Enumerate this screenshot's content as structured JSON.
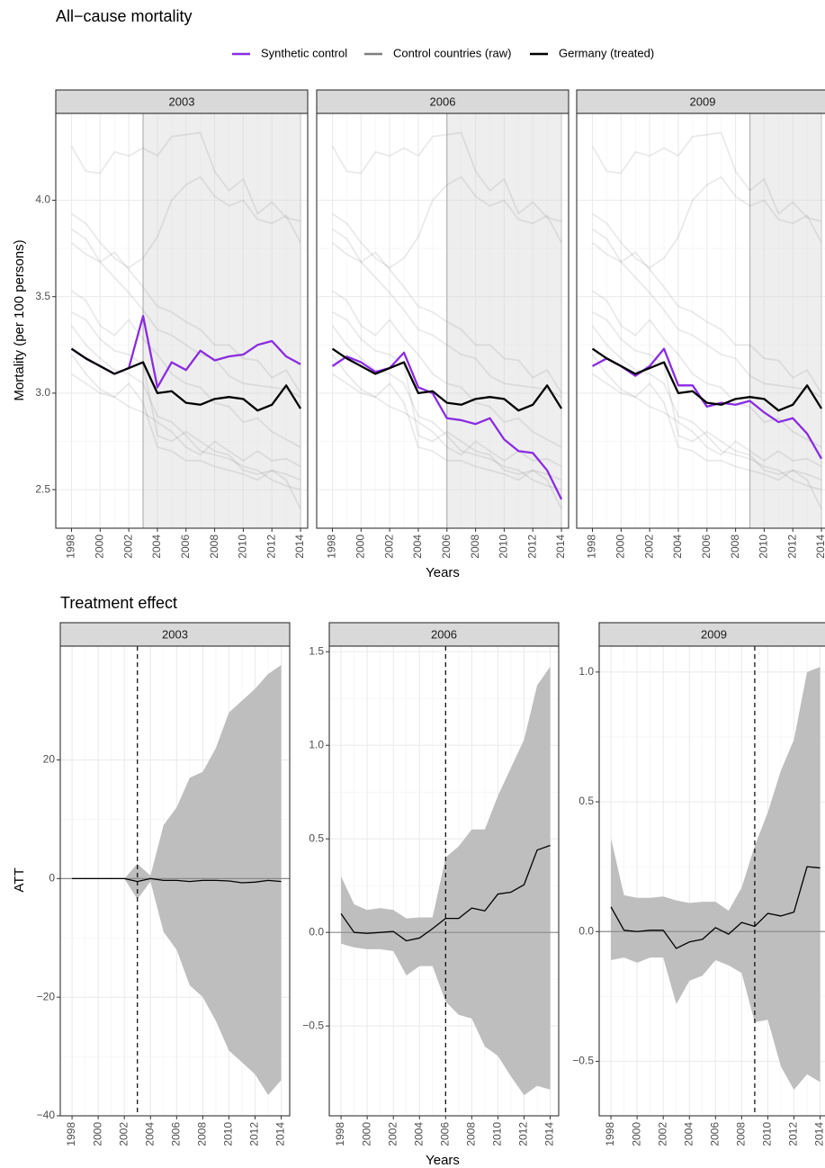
{
  "figure": {
    "title": "All−cause mortality",
    "ylabel": "Mortality (per 100 persons)",
    "xlabel": "Years",
    "legend": [
      {
        "name": "Synthetic control",
        "color": "#8a2be2"
      },
      {
        "name": "Control countries (raw)",
        "color": "#7f7f7f"
      },
      {
        "name": "Germany (treated)",
        "color": "#000000"
      }
    ]
  },
  "effects": {
    "title": "Treatment effect",
    "ylabel": "ATT",
    "xlabel": "Years",
    "band_color": "#bebebe",
    "line_color": "#000000"
  },
  "chart_data": [
    {
      "type": "line",
      "title": "2003",
      "x": [
        1998,
        1999,
        2000,
        2001,
        2002,
        2003,
        2004,
        2005,
        2006,
        2007,
        2008,
        2009,
        2010,
        2011,
        2012,
        2013,
        2014
      ],
      "synthetic": [
        3.23,
        3.18,
        3.14,
        3.1,
        3.13,
        3.4,
        3.03,
        3.16,
        3.12,
        3.22,
        3.17,
        3.19,
        3.2,
        3.25,
        3.27,
        3.19,
        3.15
      ],
      "treated": [
        3.23,
        3.18,
        3.14,
        3.1,
        3.13,
        3.16,
        3.0,
        3.01,
        2.95,
        2.94,
        2.97,
        2.98,
        2.97,
        2.91,
        2.94,
        3.04,
        2.92
      ],
      "control_raw": [
        [
          4.28,
          4.15,
          4.14,
          4.25,
          4.23,
          4.27,
          4.23,
          4.33,
          4.34,
          4.35,
          4.15,
          4.05,
          4.11,
          3.93,
          3.99,
          3.91,
          3.89
        ],
        [
          3.93,
          3.88,
          3.78,
          3.7,
          3.65,
          3.7,
          3.81,
          4.0,
          4.08,
          4.12,
          4.02,
          3.97,
          4.0,
          3.9,
          3.88,
          3.92,
          3.78
        ],
        [
          3.85,
          3.8,
          3.68,
          3.73,
          3.64,
          3.55,
          3.45,
          3.42,
          3.37,
          3.33,
          3.25,
          3.25,
          3.18,
          3.17,
          3.08,
          3.12,
          3.0
        ],
        [
          3.78,
          3.72,
          3.68,
          3.6,
          3.52,
          3.43,
          3.33,
          3.3,
          3.25,
          3.2,
          3.18,
          3.09,
          3.05,
          3.04,
          3.03,
          3.02,
          2.98
        ],
        [
          3.53,
          3.48,
          3.35,
          3.3,
          3.38,
          3.28,
          3.2,
          3.1,
          3.05,
          3.03,
          2.95,
          2.93,
          2.85,
          2.87,
          2.8,
          2.76,
          2.72
        ],
        [
          3.42,
          3.38,
          3.28,
          3.22,
          3.2,
          3.15,
          2.78,
          2.75,
          2.8,
          2.75,
          2.7,
          2.68,
          2.6,
          2.58,
          2.6,
          2.55,
          2.4
        ],
        [
          3.35,
          3.25,
          3.18,
          3.12,
          3.1,
          3.05,
          2.88,
          2.85,
          2.78,
          2.7,
          2.68,
          2.66,
          2.62,
          2.6,
          2.55,
          2.52,
          2.5
        ],
        [
          3.2,
          3.1,
          3.02,
          2.98,
          3.05,
          2.95,
          2.72,
          2.7,
          2.65,
          2.65,
          2.62,
          2.6,
          2.58,
          2.55,
          2.6,
          2.58,
          2.55
        ],
        [
          3.1,
          3.05,
          3.0,
          2.98,
          2.93,
          2.9,
          2.85,
          2.8,
          2.72,
          2.68,
          2.75,
          2.7,
          2.65,
          2.7,
          2.65,
          2.66,
          2.62
        ]
      ],
      "shade_from": 2003,
      "xlim": [
        1996.9,
        2014.5
      ],
      "xticks": [
        1998,
        2000,
        2002,
        2004,
        2006,
        2008,
        2010,
        2012,
        2014
      ],
      "ylim": [
        2.3,
        4.45
      ],
      "yticks": [
        2.5,
        {
          "value": 3,
          "label": "3.0"
        },
        3.5,
        {
          "value": 4,
          "label": "4.0"
        }
      ]
    },
    {
      "type": "line",
      "title": "2006",
      "x": [
        1998,
        1999,
        2000,
        2001,
        2002,
        2003,
        2004,
        2005,
        2006,
        2007,
        2008,
        2009,
        2010,
        2011,
        2012,
        2013,
        2014
      ],
      "synthetic": [
        3.14,
        3.19,
        3.16,
        3.11,
        3.13,
        3.21,
        3.03,
        3.0,
        2.87,
        2.86,
        2.84,
        2.87,
        2.76,
        2.7,
        2.69,
        2.6,
        2.45
      ],
      "treated": [
        3.23,
        3.18,
        3.14,
        3.1,
        3.13,
        3.16,
        3.0,
        3.01,
        2.95,
        2.94,
        2.97,
        2.98,
        2.97,
        2.91,
        2.94,
        3.04,
        2.92
      ],
      "control_raw": [
        [
          4.28,
          4.15,
          4.14,
          4.25,
          4.23,
          4.27,
          4.23,
          4.33,
          4.34,
          4.35,
          4.15,
          4.05,
          4.11,
          3.93,
          3.99,
          3.91,
          3.89
        ],
        [
          3.93,
          3.88,
          3.78,
          3.7,
          3.65,
          3.7,
          3.81,
          4.0,
          4.08,
          4.12,
          4.02,
          3.97,
          4.0,
          3.9,
          3.88,
          3.92,
          3.78
        ],
        [
          3.85,
          3.8,
          3.68,
          3.73,
          3.64,
          3.55,
          3.45,
          3.42,
          3.37,
          3.33,
          3.25,
          3.25,
          3.18,
          3.17,
          3.08,
          3.12,
          3.0
        ],
        [
          3.78,
          3.72,
          3.68,
          3.6,
          3.52,
          3.43,
          3.33,
          3.3,
          3.25,
          3.2,
          3.18,
          3.09,
          3.05,
          3.04,
          3.03,
          3.02,
          2.98
        ],
        [
          3.53,
          3.48,
          3.35,
          3.3,
          3.38,
          3.28,
          3.2,
          3.1,
          3.05,
          3.03,
          2.95,
          2.93,
          2.85,
          2.87,
          2.8,
          2.76,
          2.72
        ],
        [
          3.42,
          3.38,
          3.28,
          3.22,
          3.2,
          3.15,
          2.78,
          2.75,
          2.8,
          2.75,
          2.7,
          2.68,
          2.6,
          2.58,
          2.6,
          2.55,
          2.4
        ],
        [
          3.35,
          3.25,
          3.18,
          3.12,
          3.1,
          3.05,
          2.88,
          2.85,
          2.78,
          2.7,
          2.68,
          2.66,
          2.62,
          2.6,
          2.55,
          2.52,
          2.5
        ],
        [
          3.2,
          3.1,
          3.02,
          2.98,
          3.05,
          2.95,
          2.72,
          2.7,
          2.65,
          2.65,
          2.62,
          2.6,
          2.58,
          2.55,
          2.6,
          2.58,
          2.55
        ],
        [
          3.1,
          3.05,
          3.0,
          2.98,
          2.93,
          2.9,
          2.85,
          2.8,
          2.72,
          2.68,
          2.75,
          2.7,
          2.65,
          2.7,
          2.65,
          2.66,
          2.62
        ]
      ],
      "shade_from": 2006,
      "xlim": [
        1996.9,
        2014.5
      ],
      "xticks": [
        1998,
        2000,
        2002,
        2004,
        2006,
        2008,
        2010,
        2012,
        2014
      ],
      "ylim": [
        2.3,
        4.45
      ],
      "yticks": [
        2.5,
        {
          "value": 3,
          "label": "3.0"
        },
        3.5,
        {
          "value": 4,
          "label": "4.0"
        }
      ]
    },
    {
      "type": "line",
      "title": "2009",
      "x": [
        1998,
        1999,
        2000,
        2001,
        2002,
        2003,
        2004,
        2005,
        2006,
        2007,
        2008,
        2009,
        2010,
        2011,
        2012,
        2013,
        2014
      ],
      "synthetic": [
        3.14,
        3.18,
        3.14,
        3.09,
        3.14,
        3.23,
        3.04,
        3.04,
        2.93,
        2.95,
        2.94,
        2.96,
        2.9,
        2.85,
        2.87,
        2.79,
        2.66
      ],
      "treated": [
        3.23,
        3.18,
        3.14,
        3.1,
        3.13,
        3.16,
        3.0,
        3.01,
        2.95,
        2.94,
        2.97,
        2.98,
        2.97,
        2.91,
        2.94,
        3.04,
        2.92
      ],
      "control_raw": [
        [
          4.28,
          4.15,
          4.14,
          4.25,
          4.23,
          4.27,
          4.23,
          4.33,
          4.34,
          4.35,
          4.15,
          4.05,
          4.11,
          3.93,
          3.99,
          3.91,
          3.89
        ],
        [
          3.93,
          3.88,
          3.78,
          3.7,
          3.65,
          3.7,
          3.81,
          4.0,
          4.08,
          4.12,
          4.02,
          3.97,
          4.0,
          3.9,
          3.88,
          3.92,
          3.78
        ],
        [
          3.85,
          3.8,
          3.68,
          3.73,
          3.64,
          3.55,
          3.45,
          3.42,
          3.37,
          3.33,
          3.25,
          3.25,
          3.18,
          3.17,
          3.08,
          3.12,
          3.0
        ],
        [
          3.78,
          3.72,
          3.68,
          3.6,
          3.52,
          3.43,
          3.33,
          3.3,
          3.25,
          3.2,
          3.18,
          3.09,
          3.05,
          3.04,
          3.03,
          3.02,
          2.98
        ],
        [
          3.53,
          3.48,
          3.35,
          3.3,
          3.38,
          3.28,
          3.2,
          3.1,
          3.05,
          3.03,
          2.95,
          2.93,
          2.85,
          2.87,
          2.8,
          2.76,
          2.72
        ],
        [
          3.42,
          3.38,
          3.28,
          3.22,
          3.2,
          3.15,
          2.78,
          2.75,
          2.8,
          2.75,
          2.7,
          2.68,
          2.6,
          2.58,
          2.6,
          2.55,
          2.4
        ],
        [
          3.35,
          3.25,
          3.18,
          3.12,
          3.1,
          3.05,
          2.88,
          2.85,
          2.78,
          2.7,
          2.68,
          2.66,
          2.62,
          2.6,
          2.55,
          2.52,
          2.5
        ],
        [
          3.2,
          3.1,
          3.02,
          2.98,
          3.05,
          2.95,
          2.72,
          2.7,
          2.65,
          2.65,
          2.62,
          2.6,
          2.58,
          2.55,
          2.6,
          2.58,
          2.55
        ],
        [
          3.1,
          3.05,
          3.0,
          2.98,
          2.93,
          2.9,
          2.85,
          2.8,
          2.72,
          2.68,
          2.75,
          2.7,
          2.65,
          2.7,
          2.65,
          2.66,
          2.62
        ]
      ],
      "shade_from": 2009,
      "xlim": [
        1996.9,
        2014.5
      ],
      "xticks": [
        1998,
        2000,
        2002,
        2004,
        2006,
        2008,
        2010,
        2012,
        2014
      ],
      "ylim": [
        2.3,
        4.45
      ],
      "yticks": [
        2.5,
        {
          "value": 3,
          "label": "3.0"
        },
        3.5,
        {
          "value": 4,
          "label": "4.0"
        }
      ]
    },
    {
      "type": "band",
      "title": "2003",
      "x": [
        1998,
        1999,
        2000,
        2001,
        2002,
        2003,
        2004,
        2005,
        2006,
        2007,
        2008,
        2009,
        2010,
        2011,
        2012,
        2013,
        2014
      ],
      "values": [
        0,
        0,
        0,
        0,
        0,
        -0.5,
        0,
        -0.3,
        -0.3,
        -0.5,
        -0.3,
        -0.3,
        -0.4,
        -0.7,
        -0.6,
        -0.3,
        -0.5
      ],
      "upper": [
        0,
        0,
        0,
        0,
        0,
        2.5,
        0.5,
        9,
        12,
        17,
        18,
        22,
        28,
        30,
        32,
        34.5,
        36
      ],
      "lower": [
        0,
        0,
        0,
        0,
        0,
        -3.5,
        -0.5,
        -9,
        -12,
        -18,
        -20,
        -24,
        -29,
        -31,
        -33,
        -36.5,
        -34
      ],
      "vline": 2003,
      "hline": 0,
      "xlim": [
        1997.1,
        2014.65
      ],
      "xticks": [
        1998,
        2000,
        2002,
        2004,
        2006,
        2008,
        2010,
        2012,
        2014
      ],
      "ylim": [
        -40,
        39.2
      ],
      "yticks": [
        {
          "value": -40,
          "label": "−40"
        },
        {
          "value": -20,
          "label": "−20"
        },
        0,
        20
      ]
    },
    {
      "type": "band",
      "title": "2006",
      "x": [
        1998,
        1999,
        2000,
        2001,
        2002,
        2003,
        2004,
        2005,
        2006,
        2007,
        2008,
        2009,
        2010,
        2011,
        2012,
        2013,
        2014
      ],
      "values": [
        0.1,
        0.0,
        -0.005,
        0.0,
        0.005,
        -0.045,
        -0.03,
        0.02,
        0.075,
        0.075,
        0.13,
        0.115,
        0.205,
        0.215,
        0.255,
        0.44,
        0.465
      ],
      "upper": [
        0.3,
        0.15,
        0.12,
        0.13,
        0.12,
        0.075,
        0.08,
        0.08,
        0.4,
        0.46,
        0.55,
        0.55,
        0.73,
        0.88,
        1.03,
        1.32,
        1.42
      ],
      "lower": [
        -0.06,
        -0.08,
        -0.09,
        -0.09,
        -0.1,
        -0.23,
        -0.18,
        -0.18,
        -0.37,
        -0.44,
        -0.46,
        -0.61,
        -0.66,
        -0.77,
        -0.87,
        -0.82,
        -0.84
      ],
      "vline": 2006,
      "hline": 0,
      "xlim": [
        1997.1,
        2014.65
      ],
      "xticks": [
        1998,
        2000,
        2002,
        2004,
        2006,
        2008,
        2010,
        2012,
        2014
      ],
      "ylim": [
        -0.98,
        1.53
      ],
      "yticks": [
        {
          "value": -0.5,
          "label": "−0.5"
        },
        {
          "value": 0,
          "label": "0.0"
        },
        0.5,
        {
          "value": 1,
          "label": "1.0"
        },
        1.5
      ]
    },
    {
      "type": "band",
      "title": "2009",
      "x": [
        1998,
        1999,
        2000,
        2001,
        2002,
        2003,
        2004,
        2005,
        2006,
        2007,
        2008,
        2009,
        2010,
        2011,
        2012,
        2013,
        2014
      ],
      "values": [
        0.095,
        0.005,
        0.0,
        0.005,
        0.005,
        -0.065,
        -0.04,
        -0.03,
        0.015,
        -0.01,
        0.035,
        0.02,
        0.07,
        0.06,
        0.075,
        0.25,
        0.245
      ],
      "upper": [
        0.36,
        0.14,
        0.13,
        0.13,
        0.135,
        0.12,
        0.11,
        0.115,
        0.115,
        0.08,
        0.17,
        0.33,
        0.46,
        0.62,
        0.74,
        1.0,
        1.02
      ],
      "lower": [
        -0.11,
        -0.1,
        -0.12,
        -0.1,
        -0.1,
        -0.28,
        -0.19,
        -0.17,
        -0.11,
        -0.13,
        -0.16,
        -0.35,
        -0.34,
        -0.52,
        -0.61,
        -0.55,
        -0.58
      ],
      "vline": 2009,
      "hline": 0,
      "xlim": [
        1997.1,
        2014.65
      ],
      "xticks": [
        1998,
        2000,
        2002,
        2004,
        2006,
        2008,
        2010,
        2012,
        2014
      ],
      "ylim": [
        -0.71,
        1.1
      ],
      "yticks": [
        {
          "value": -0.5,
          "label": "−0.5"
        },
        {
          "value": 0,
          "label": "0.0"
        },
        0.5,
        {
          "value": 1,
          "label": "1.0"
        }
      ]
    }
  ]
}
